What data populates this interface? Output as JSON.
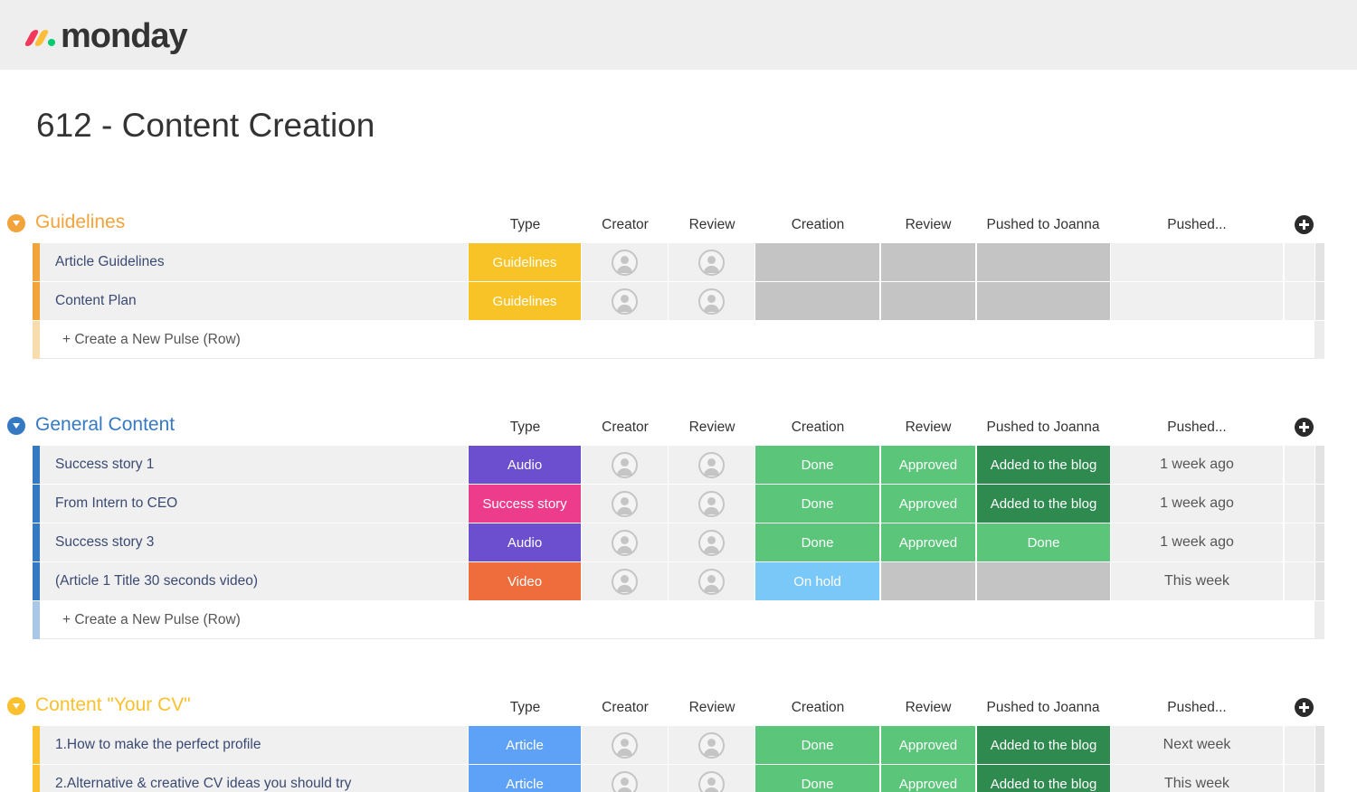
{
  "app": {
    "logo_text": "monday"
  },
  "page": {
    "title": "612 - Content Creation"
  },
  "columns": [
    "Type",
    "Creator",
    "Review",
    "Creation",
    "Review",
    "Pushed to Joanna",
    "Pushed..."
  ],
  "add_row_label": "+ Create a New Pulse (Row)",
  "colors": {
    "guidelines_group": "#f2a33a",
    "general_group": "#3679c3",
    "cv_group": "#fbc02d",
    "type_guidelines": "#f8c326",
    "type_audio": "#6c4fce",
    "type_success_story": "#ed3c8c",
    "type_video": "#ef6d3c",
    "type_article": "#5ea2f7",
    "status_done": "#5bc57a",
    "status_approved": "#5bc57a",
    "status_added": "#2f8a4f",
    "status_onhold": "#7ac8f7",
    "status_empty": "#c4c4c4"
  },
  "groups": [
    {
      "name": "Guidelines",
      "rows": [
        {
          "name": "Article Guidelines",
          "type": "Guidelines",
          "creation": "",
          "review": "",
          "pushed_joanna": "",
          "pushed": ""
        },
        {
          "name": "Content Plan",
          "type": "Guidelines",
          "creation": "",
          "review": "",
          "pushed_joanna": "",
          "pushed": ""
        }
      ]
    },
    {
      "name": "General Content",
      "rows": [
        {
          "name": "Success story 1",
          "type": "Audio",
          "creation": "Done",
          "review": "Approved",
          "pushed_joanna": "Added to the blog",
          "pushed": "1 week ago"
        },
        {
          "name": "From Intern to CEO",
          "type": "Success story",
          "creation": "Done",
          "review": "Approved",
          "pushed_joanna": "Added to the blog",
          "pushed": "1 week ago"
        },
        {
          "name": "Success story 3",
          "type": "Audio",
          "creation": "Done",
          "review": "Approved",
          "pushed_joanna": "Done",
          "pushed": "1 week ago"
        },
        {
          "name": "(Article 1 Title 30 seconds video)",
          "type": "Video",
          "creation": "On hold",
          "review": "",
          "pushed_joanna": "",
          "pushed": "This week"
        }
      ]
    },
    {
      "name": "Content \"Your CV\"",
      "rows": [
        {
          "name": "1.How to make the perfect profile",
          "type": "Article",
          "creation": "Done",
          "review": "Approved",
          "pushed_joanna": "Added to the blog",
          "pushed": "Next week"
        },
        {
          "name": "2.Alternative & creative CV ideas you should try",
          "type": "Article",
          "creation": "Done",
          "review": "Approved",
          "pushed_joanna": "Added to the blog",
          "pushed": "This week"
        }
      ]
    }
  ]
}
